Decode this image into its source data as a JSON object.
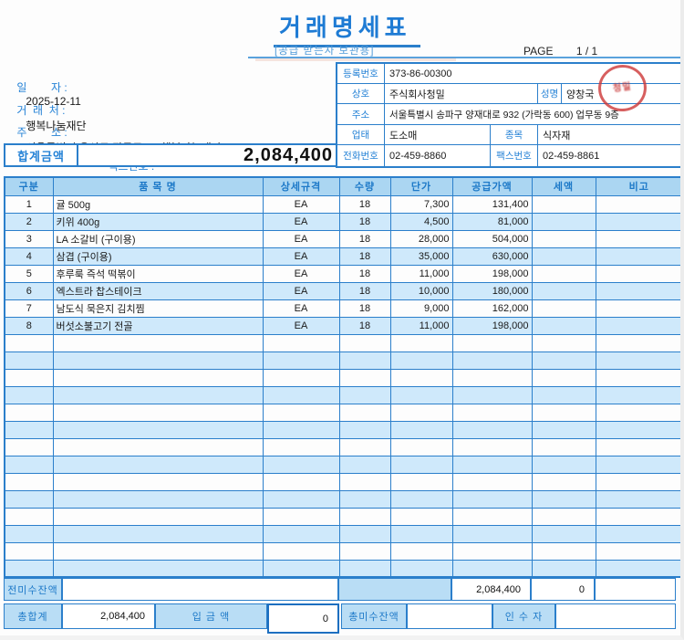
{
  "page": {
    "title": "거래명세표",
    "subtitle": "[공급 받는자 보관용]",
    "page_label": "PAGE",
    "page_value": "1 / 1"
  },
  "buyer": {
    "date_label": "일        자 :",
    "date_value": "2025-12-11",
    "client_label": "거  래  처 :",
    "client_value": "행복나눔재단",
    "address_label": "주        소 :",
    "address_value": "서울특별시 용산구 장문로 60 행복나눔재단",
    "tel_label": "전화 번호:",
    "fax_label": "팩스번호 :",
    "total_label": "합계금액",
    "total_value": "2,084,400"
  },
  "supplier": {
    "reg_label": "등록번호",
    "reg_value": "373-86-00300",
    "company_label": "상호",
    "company_value": "주식회사청밀",
    "ceo_label": "성명",
    "ceo_value": "양창국",
    "address_label": "주소",
    "address_value": "서울특별시 송파구 양재대로 932 (가락동 600) 업무동 9층",
    "biztype_label": "업태",
    "biztype_value": "도소매",
    "item_label": "종목",
    "item_value": "식자재",
    "tel_label": "전화번호",
    "tel_value": "02-459-8860",
    "fax_label": "팩스번호",
    "fax_value": "02-459-8861",
    "seal_text": "청밀"
  },
  "table": {
    "headers": [
      "구분",
      "품 목 명",
      "상세규격",
      "수량",
      "단가",
      "공급가액",
      "세액",
      "비고"
    ],
    "rows": [
      {
        "no": "1",
        "name": "귤 500g",
        "spec": "EA",
        "qty": "18",
        "unit_price": "7,300",
        "supply": "131,400",
        "tax": "",
        "note": ""
      },
      {
        "no": "2",
        "name": "키위 400g",
        "spec": "EA",
        "qty": "18",
        "unit_price": "4,500",
        "supply": "81,000",
        "tax": "",
        "note": ""
      },
      {
        "no": "3",
        "name": "LA 소갈비 (구이용)",
        "spec": "EA",
        "qty": "18",
        "unit_price": "28,000",
        "supply": "504,000",
        "tax": "",
        "note": ""
      },
      {
        "no": "4",
        "name": "삼겹 (구이용)",
        "spec": "EA",
        "qty": "18",
        "unit_price": "35,000",
        "supply": "630,000",
        "tax": "",
        "note": ""
      },
      {
        "no": "5",
        "name": "후루룩 즉석 떡볶이",
        "spec": "EA",
        "qty": "18",
        "unit_price": "11,000",
        "supply": "198,000",
        "tax": "",
        "note": ""
      },
      {
        "no": "6",
        "name": "엑스트라 찹스테이크",
        "spec": "EA",
        "qty": "18",
        "unit_price": "10,000",
        "supply": "180,000",
        "tax": "",
        "note": ""
      },
      {
        "no": "7",
        "name": "남도식 묵은지 김치찜",
        "spec": "EA",
        "qty": "18",
        "unit_price": "9,000",
        "supply": "162,000",
        "tax": "",
        "note": ""
      },
      {
        "no": "8",
        "name": "버섯소불고기 전골",
        "spec": "EA",
        "qty": "18",
        "unit_price": "11,000",
        "supply": "198,000",
        "tax": "",
        "note": ""
      }
    ],
    "empty_row_count": 14
  },
  "footer": {
    "prev_balance_label": "전미수잔액",
    "prev_supply_total": "2,084,400",
    "prev_tax_total": "0",
    "grand_total_label": "총합계",
    "grand_total_value": "2,084,400",
    "deposit_label": "입 금 액",
    "deposit_value": "0",
    "outstanding_label": "총미수잔액",
    "receiver_label": "인 수 자"
  },
  "colors": {
    "border_blue": "#2b7fcb",
    "label_blue": "#2582d6",
    "title_blue": "#1e7bd4",
    "header_fill": "#abd6f2",
    "stripe_fill": "#cfe9fb",
    "footer_fill": "#b9ddf5",
    "seal_red": "#cd3737"
  }
}
